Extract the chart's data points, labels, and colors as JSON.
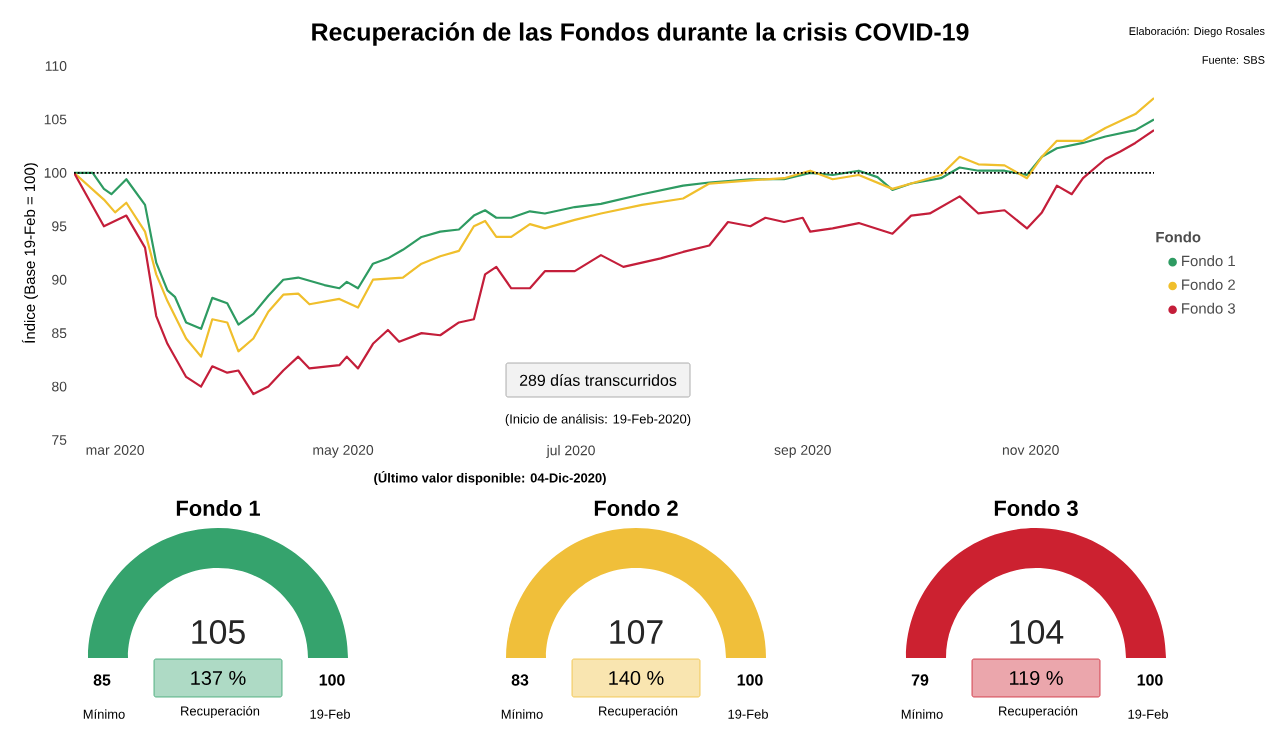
{
  "chart_data": [
    {
      "type": "line",
      "title": "Recuperación de las Fondos durante la crisis COVID-19",
      "ylabel": "Índice (Base 19-Feb = 100)",
      "legend_title": "Fondo",
      "legend": "right",
      "marker": "none",
      "line_style": "solid",
      "xlim": [
        "2020-02-19",
        "2020-12-04"
      ],
      "ylim": [
        75,
        110
      ],
      "xticks": [
        {
          "value": "2020-03-01",
          "label": "mar 2020"
        },
        {
          "value": "2020-05-01",
          "label": "may 2020"
        },
        {
          "value": "2020-07-01",
          "label": "jul 2020"
        },
        {
          "value": "2020-09-01",
          "label": "sep 2020"
        },
        {
          "value": "2020-11-01",
          "label": "nov 2020"
        }
      ],
      "yticks": [
        75,
        80,
        85,
        90,
        95,
        100,
        105,
        110
      ],
      "ref_lines": [
        {
          "axis": "y",
          "value": 100,
          "color": "#000000",
          "line_style": "dotted"
        }
      ],
      "annotations": [
        "Elaboración: Diego Rosales",
        "Fuente: SBS",
        "289 días transcurridos",
        "(Inicio de análisis: 19-Feb-2020)",
        "(Último valor disponible: 04-Dic-2020)"
      ],
      "series": [
        {
          "name": "Fondo 1",
          "color": "#2e9b62",
          "x": [
            "2020-02-19",
            "2020-02-24",
            "2020-02-27",
            "2020-02-29",
            "2020-03-04",
            "2020-03-09",
            "2020-03-12",
            "2020-03-15",
            "2020-03-17",
            "2020-03-20",
            "2020-03-24",
            "2020-03-27",
            "2020-03-31",
            "2020-04-03",
            "2020-04-07",
            "2020-04-11",
            "2020-04-15",
            "2020-04-19",
            "2020-04-26",
            "2020-04-30",
            "2020-05-02",
            "2020-05-05",
            "2020-05-09",
            "2020-05-13",
            "2020-05-17",
            "2020-05-22",
            "2020-05-27",
            "2020-06-01",
            "2020-06-05",
            "2020-06-08",
            "2020-06-11",
            "2020-06-15",
            "2020-06-20",
            "2020-06-24",
            "2020-07-02",
            "2020-07-09",
            "2020-07-20",
            "2020-07-31",
            "2020-08-07",
            "2020-08-18",
            "2020-08-27",
            "2020-09-03",
            "2020-09-09",
            "2020-09-16",
            "2020-09-21",
            "2020-09-25",
            "2020-09-30",
            "2020-10-08",
            "2020-10-13",
            "2020-10-18",
            "2020-10-25",
            "2020-10-31",
            "2020-11-04",
            "2020-11-08",
            "2020-11-15",
            "2020-11-21",
            "2020-11-29",
            "2020-12-04"
          ],
          "values": [
            100,
            100,
            98.5,
            98,
            99.4,
            97,
            91.6,
            89,
            88.4,
            86,
            85.4,
            88.3,
            87.8,
            85.8,
            86.8,
            88.5,
            90,
            90.2,
            89.5,
            89.2,
            89.8,
            89.2,
            91.5,
            92,
            92.8,
            94,
            94.5,
            94.7,
            96,
            96.5,
            95.8,
            95.8,
            96.4,
            96.2,
            96.8,
            97.1,
            98,
            98.8,
            99.1,
            99.4,
            99.4,
            100,
            99.8,
            100.2,
            99.6,
            98.4,
            99,
            99.5,
            100.5,
            100.2,
            100.2,
            99.8,
            101.5,
            102.3,
            102.8,
            103.4,
            104,
            105
          ]
        },
        {
          "name": "Fondo 2",
          "color": "#f0bf2c",
          "x": [
            "2020-02-19",
            "2020-02-27",
            "2020-03-01",
            "2020-03-04",
            "2020-03-09",
            "2020-03-12",
            "2020-03-15",
            "2020-03-20",
            "2020-03-24",
            "2020-03-27",
            "2020-03-31",
            "2020-04-03",
            "2020-04-07",
            "2020-04-11",
            "2020-04-15",
            "2020-04-19",
            "2020-04-22",
            "2020-04-30",
            "2020-05-05",
            "2020-05-09",
            "2020-05-17",
            "2020-05-22",
            "2020-05-27",
            "2020-06-01",
            "2020-06-05",
            "2020-06-08",
            "2020-06-11",
            "2020-06-15",
            "2020-06-20",
            "2020-06-24",
            "2020-07-02",
            "2020-07-09",
            "2020-07-20",
            "2020-07-31",
            "2020-08-07",
            "2020-08-18",
            "2020-08-27",
            "2020-09-03",
            "2020-09-09",
            "2020-09-16",
            "2020-09-25",
            "2020-09-30",
            "2020-10-08",
            "2020-10-13",
            "2020-10-18",
            "2020-10-25",
            "2020-10-31",
            "2020-11-04",
            "2020-11-08",
            "2020-11-15",
            "2020-11-21",
            "2020-11-29",
            "2020-12-04"
          ],
          "values": [
            100,
            97.5,
            96.3,
            97.2,
            94.5,
            90.5,
            88,
            84.5,
            82.8,
            86.3,
            86,
            83.3,
            84.5,
            87,
            88.6,
            88.7,
            87.7,
            88.2,
            87.4,
            90,
            90.2,
            91.5,
            92.2,
            92.7,
            95,
            95.5,
            94,
            94,
            95.2,
            94.8,
            95.6,
            96.2,
            97,
            97.6,
            99,
            99.3,
            99.5,
            100.2,
            99.4,
            99.8,
            98.5,
            99,
            99.8,
            101.5,
            100.8,
            100.7,
            99.5,
            101.5,
            103,
            103,
            104.2,
            105.5,
            107
          ]
        },
        {
          "name": "Fondo 3",
          "color": "#c41e3a",
          "x": [
            "2020-02-19",
            "2020-02-27",
            "2020-03-04",
            "2020-03-09",
            "2020-03-12",
            "2020-03-15",
            "2020-03-20",
            "2020-03-24",
            "2020-03-27",
            "2020-03-31",
            "2020-04-03",
            "2020-04-07",
            "2020-04-11",
            "2020-04-15",
            "2020-04-19",
            "2020-04-22",
            "2020-04-30",
            "2020-05-02",
            "2020-05-05",
            "2020-05-09",
            "2020-05-13",
            "2020-05-16",
            "2020-05-22",
            "2020-05-27",
            "2020-06-01",
            "2020-06-05",
            "2020-06-08",
            "2020-06-11",
            "2020-06-15",
            "2020-06-20",
            "2020-06-24",
            "2020-07-02",
            "2020-07-09",
            "2020-07-15",
            "2020-07-20",
            "2020-07-25",
            "2020-07-31",
            "2020-08-07",
            "2020-08-12",
            "2020-08-18",
            "2020-08-22",
            "2020-08-27",
            "2020-09-01",
            "2020-09-03",
            "2020-09-09",
            "2020-09-16",
            "2020-09-25",
            "2020-09-30",
            "2020-10-05",
            "2020-10-13",
            "2020-10-18",
            "2020-10-25",
            "2020-10-31",
            "2020-11-04",
            "2020-11-08",
            "2020-11-12",
            "2020-11-15",
            "2020-11-21",
            "2020-11-25",
            "2020-11-29",
            "2020-12-04"
          ],
          "values": [
            100,
            95,
            96,
            93,
            86.6,
            84,
            80.9,
            80,
            81.9,
            81.3,
            81.5,
            79.3,
            80,
            81.5,
            82.8,
            81.7,
            82,
            82.8,
            81.7,
            84,
            85.3,
            84.2,
            85,
            84.8,
            86,
            86.3,
            90.5,
            91.2,
            89.2,
            89.2,
            90.8,
            90.8,
            92.3,
            91.2,
            91.6,
            92,
            92.6,
            93.2,
            95.4,
            95,
            95.8,
            95.4,
            95.8,
            94.5,
            94.8,
            95.3,
            94.3,
            96,
            96.2,
            97.8,
            96.2,
            96.5,
            94.8,
            96.3,
            98.8,
            98,
            99.5,
            101.3,
            102,
            102.8,
            104
          ]
        }
      ]
    },
    {
      "type": "other",
      "title": "Fondo 1",
      "color": "#35a36d",
      "annotations": [
        "105",
        "137 %",
        "85",
        "100",
        "Mínimo",
        "Recuperación",
        "19-Feb"
      ]
    },
    {
      "type": "other",
      "title": "Fondo 2",
      "color": "#f0bf3a",
      "annotations": [
        "107",
        "140 %",
        "83",
        "100",
        "Mínimo",
        "Recuperación",
        "19-Feb"
      ]
    },
    {
      "type": "other",
      "title": "Fondo 3",
      "color": "#cc2130",
      "annotations": [
        "104",
        "119 %",
        "79",
        "100",
        "Mínimo",
        "Recuperación",
        "19-Feb"
      ]
    }
  ]
}
